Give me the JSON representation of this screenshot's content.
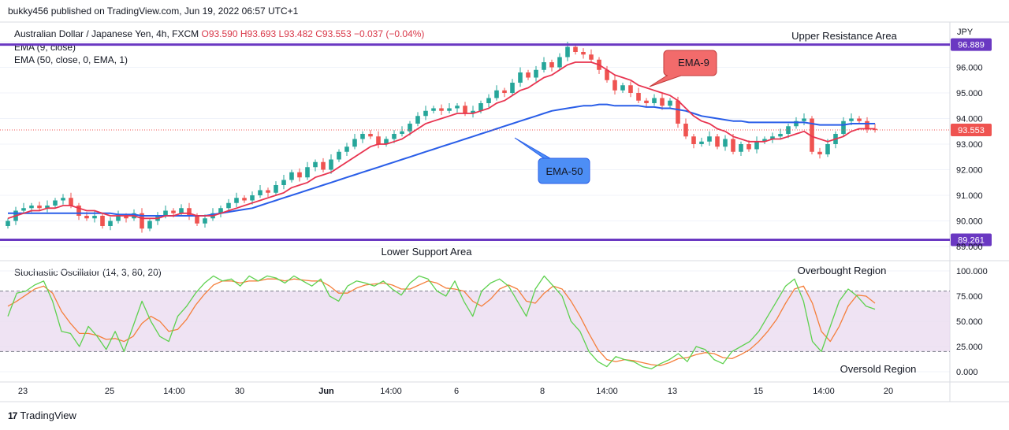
{
  "publisher": "bukky456 published on TradingView.com, Jun 19, 2022 06:57 UTC+1",
  "legend": {
    "symbol": "Australian Dollar / Japanese Yen, 4h, FXCM",
    "ohlc": "O93.590 H93.693 L93.482 C93.553 −0.037 (−0.04%)",
    "ema9": "EMA (9, close)",
    "ema50": "EMA (50, close, 0, EMA, 1)",
    "stoch": "Stochastic Oscillator (14, 3, 80, 20)"
  },
  "currency": "JPY",
  "watermark": "TradingView",
  "colors": {
    "bull": "#26a69a",
    "bear": "#ef5350",
    "ema9": "#e8334f",
    "ema50": "#2a5ee8",
    "level": "#6a38c2",
    "k": "#5ed14f",
    "d": "#f57f3c",
    "band": "#ead9ef"
  },
  "chart_data": [
    {
      "type": "candlestick",
      "symbol": "AUDJPY",
      "timeframe": "4h",
      "ylim": [
        88.7,
        97.6
      ],
      "y_ticks": [
        "97.000",
        "96.000",
        "95.000",
        "94.000",
        "93.000",
        "92.000",
        "91.000",
        "90.000",
        "89.000"
      ],
      "x_ticks": [
        "23",
        "25",
        "14:00",
        "30",
        "Jun",
        "14:00",
        "6",
        "8",
        "14:00",
        "13",
        "15",
        "14:00",
        "20"
      ],
      "current_price": "93.553",
      "levels": [
        {
          "value": 96.889,
          "label": "96.889",
          "name": "Upper Resistance Area"
        },
        {
          "value": 89.261,
          "label": "89.261",
          "name": "Lower Support Area"
        }
      ],
      "callouts": [
        "EMA-9",
        "EMA-50"
      ],
      "closes": [
        90.0,
        90.4,
        90.5,
        90.6,
        90.5,
        90.6,
        90.8,
        90.9,
        90.6,
        90.2,
        90.1,
        90.2,
        89.8,
        90.0,
        90.2,
        90.1,
        90.3,
        89.7,
        90.0,
        90.2,
        90.4,
        90.3,
        90.5,
        90.2,
        89.9,
        90.1,
        90.3,
        90.5,
        90.7,
        90.9,
        90.8,
        91.0,
        91.2,
        91.1,
        91.4,
        91.6,
        91.9,
        91.7,
        92.1,
        92.3,
        92.0,
        92.4,
        92.7,
        92.9,
        93.2,
        93.4,
        93.3,
        93.0,
        93.2,
        93.4,
        93.5,
        93.8,
        94.1,
        94.3,
        94.4,
        94.3,
        94.4,
        94.5,
        94.2,
        94.3,
        94.6,
        94.8,
        95.1,
        95.0,
        95.4,
        95.8,
        95.6,
        95.9,
        96.2,
        96.0,
        96.4,
        96.8,
        96.6,
        96.5,
        96.3,
        95.9,
        95.5,
        95.1,
        95.3,
        95.0,
        94.7,
        94.6,
        94.8,
        94.5,
        94.7,
        93.8,
        93.3,
        93.0,
        93.1,
        93.3,
        92.9,
        93.2,
        92.7,
        93.0,
        92.8,
        93.1,
        93.2,
        93.3,
        93.4,
        93.7,
        93.9,
        94.0,
        92.7,
        92.6,
        93.0,
        93.4,
        93.9,
        94.0,
        93.9,
        93.6,
        93.55
      ],
      "ema9": [
        90.1,
        90.2,
        90.3,
        90.4,
        90.4,
        90.5,
        90.5,
        90.6,
        90.6,
        90.5,
        90.4,
        90.4,
        90.3,
        90.2,
        90.2,
        90.2,
        90.2,
        90.1,
        90.1,
        90.1,
        90.2,
        90.2,
        90.3,
        90.3,
        90.2,
        90.2,
        90.2,
        90.3,
        90.4,
        90.5,
        90.6,
        90.7,
        90.8,
        90.9,
        91.0,
        91.1,
        91.3,
        91.4,
        91.5,
        91.7,
        91.8,
        91.9,
        92.1,
        92.3,
        92.5,
        92.7,
        92.9,
        93.0,
        93.0,
        93.1,
        93.2,
        93.4,
        93.6,
        93.8,
        93.9,
        94.0,
        94.1,
        94.2,
        94.2,
        94.2,
        94.3,
        94.4,
        94.6,
        94.7,
        94.9,
        95.1,
        95.2,
        95.4,
        95.6,
        95.7,
        95.9,
        96.1,
        96.2,
        96.2,
        96.2,
        96.1,
        95.9,
        95.7,
        95.6,
        95.5,
        95.3,
        95.2,
        95.1,
        95.0,
        94.9,
        94.7,
        94.4,
        94.1,
        93.9,
        93.8,
        93.6,
        93.5,
        93.3,
        93.2,
        93.1,
        93.1,
        93.1,
        93.2,
        93.2,
        93.3,
        93.4,
        93.5,
        93.3,
        93.2,
        93.1,
        93.2,
        93.3,
        93.5,
        93.6,
        93.6,
        93.6
      ],
      "ema50": [
        90.3,
        90.3,
        90.3,
        90.3,
        90.3,
        90.3,
        90.3,
        90.3,
        90.3,
        90.3,
        90.3,
        90.3,
        90.3,
        90.3,
        90.25,
        90.25,
        90.25,
        90.2,
        90.2,
        90.2,
        90.2,
        90.2,
        90.2,
        90.2,
        90.2,
        90.2,
        90.25,
        90.3,
        90.35,
        90.4,
        90.45,
        90.5,
        90.6,
        90.7,
        90.8,
        90.9,
        91.0,
        91.1,
        91.2,
        91.3,
        91.4,
        91.5,
        91.6,
        91.7,
        91.8,
        91.9,
        92.0,
        92.1,
        92.2,
        92.3,
        92.4,
        92.5,
        92.6,
        92.7,
        92.8,
        92.9,
        93.0,
        93.1,
        93.2,
        93.3,
        93.4,
        93.5,
        93.6,
        93.7,
        93.8,
        93.9,
        94.0,
        94.1,
        94.2,
        94.3,
        94.35,
        94.4,
        94.45,
        94.5,
        94.5,
        94.55,
        94.55,
        94.5,
        94.5,
        94.5,
        94.5,
        94.45,
        94.45,
        94.4,
        94.4,
        94.35,
        94.3,
        94.2,
        94.1,
        94.05,
        94.0,
        93.95,
        93.9,
        93.9,
        93.85,
        93.85,
        93.85,
        93.85,
        93.85,
        93.85,
        93.85,
        93.85,
        93.8,
        93.75,
        93.75,
        93.75,
        93.75,
        93.8,
        93.8,
        93.8,
        93.8
      ]
    },
    {
      "type": "line",
      "name": "Stochastic Oscillator (14, 3, 80, 20)",
      "ylim": [
        -5,
        105
      ],
      "y_ticks": [
        "100.000",
        "75.000",
        "50.000",
        "25.000",
        "0.000"
      ],
      "upper_band": 80,
      "lower_band": 20,
      "annotations": [
        "Overbought Region",
        "Oversold Region"
      ],
      "series": [
        {
          "values": [
            55,
            78,
            80,
            86,
            90,
            70,
            40,
            38,
            25,
            45,
            35,
            22,
            40,
            20,
            45,
            70,
            50,
            35,
            30,
            55,
            65,
            78,
            88,
            95,
            90,
            92,
            85,
            95,
            90,
            95,
            93,
            88,
            95,
            90,
            85,
            92,
            75,
            70,
            85,
            90,
            88,
            85,
            90,
            82,
            76,
            88,
            95,
            92,
            80,
            75,
            90,
            70,
            55,
            80,
            88,
            92,
            85,
            70,
            55,
            82,
            95,
            85,
            75,
            50,
            40,
            20,
            10,
            5,
            15,
            12,
            10,
            5,
            3,
            8,
            12,
            18,
            10,
            25,
            22,
            12,
            8,
            20,
            25,
            30,
            40,
            55,
            70,
            85,
            92,
            70,
            30,
            20,
            45,
            70,
            82,
            75,
            65,
            62
          ]
        },
        {
          "values": [
            65,
            70,
            76,
            82,
            85,
            78,
            60,
            48,
            38,
            38,
            36,
            32,
            33,
            30,
            35,
            48,
            55,
            50,
            40,
            42,
            52,
            66,
            77,
            86,
            90,
            90,
            88,
            90,
            90,
            92,
            92,
            90,
            92,
            91,
            90,
            90,
            85,
            78,
            78,
            83,
            86,
            87,
            88,
            86,
            82,
            82,
            86,
            90,
            88,
            83,
            82,
            80,
            70,
            65,
            72,
            82,
            86,
            82,
            70,
            68,
            78,
            85,
            82,
            70,
            55,
            38,
            22,
            12,
            10,
            12,
            11,
            9,
            7,
            6,
            9,
            13,
            14,
            17,
            19,
            18,
            14,
            13,
            17,
            22,
            30,
            40,
            52,
            68,
            82,
            85,
            68,
            40,
            30,
            45,
            65,
            76,
            75,
            68
          ]
        }
      ]
    }
  ]
}
